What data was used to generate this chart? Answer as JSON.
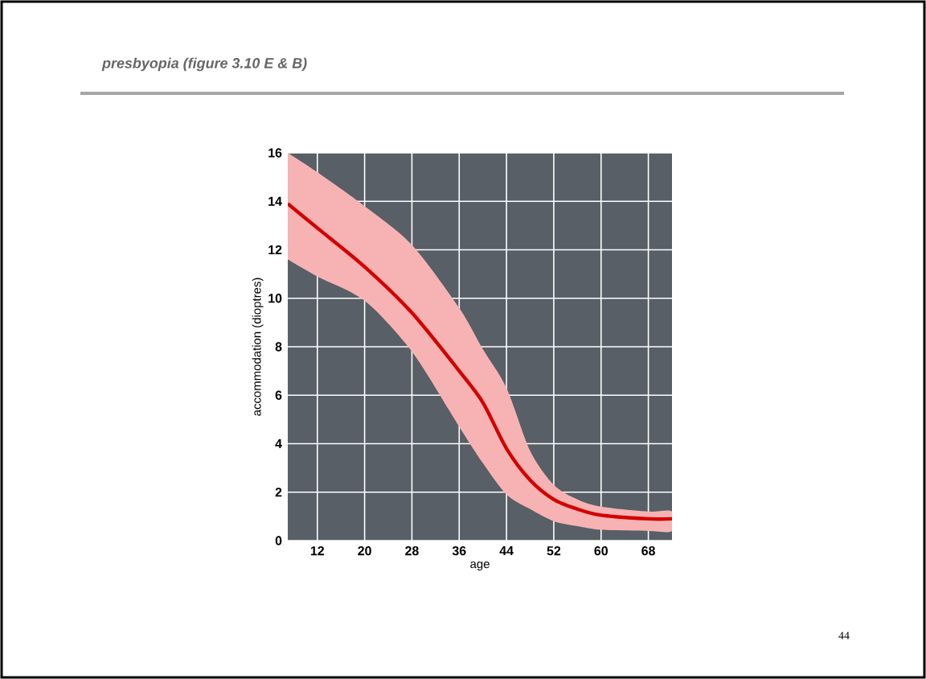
{
  "chart_data": {
    "type": "line",
    "title": "presbyopia  (figure 3.10  E & B)",
    "xlabel": "age",
    "ylabel": "accommodation (dioptres)",
    "x": [
      7,
      12,
      20,
      28,
      36,
      40,
      44,
      48,
      52,
      56,
      60,
      68,
      72
    ],
    "series": [
      {
        "color": "#d40000",
        "values": [
          13.9,
          12.9,
          11.3,
          9.4,
          7.0,
          5.7,
          3.8,
          2.5,
          1.7,
          1.3,
          1.05,
          0.9,
          0.9
        ],
        "lower": [
          11.6,
          10.9,
          9.9,
          7.8,
          4.7,
          3.2,
          1.9,
          1.3,
          0.8,
          0.6,
          0.45,
          0.4,
          0.4
        ],
        "upper": [
          16,
          15.2,
          13.8,
          12.2,
          9.6,
          7.9,
          6.3,
          3.7,
          2.3,
          1.7,
          1.4,
          1.2,
          1.2
        ]
      }
    ],
    "xlim": [
      7,
      72
    ],
    "ylim": [
      0,
      16
    ],
    "xticks": [
      12,
      20,
      28,
      36,
      44,
      52,
      60,
      68
    ],
    "yticks": [
      0,
      2,
      4,
      6,
      8,
      10,
      12,
      14,
      16
    ],
    "grid": true,
    "marker": "none",
    "line_style": "solid",
    "annotations": [
      "44"
    ]
  }
}
